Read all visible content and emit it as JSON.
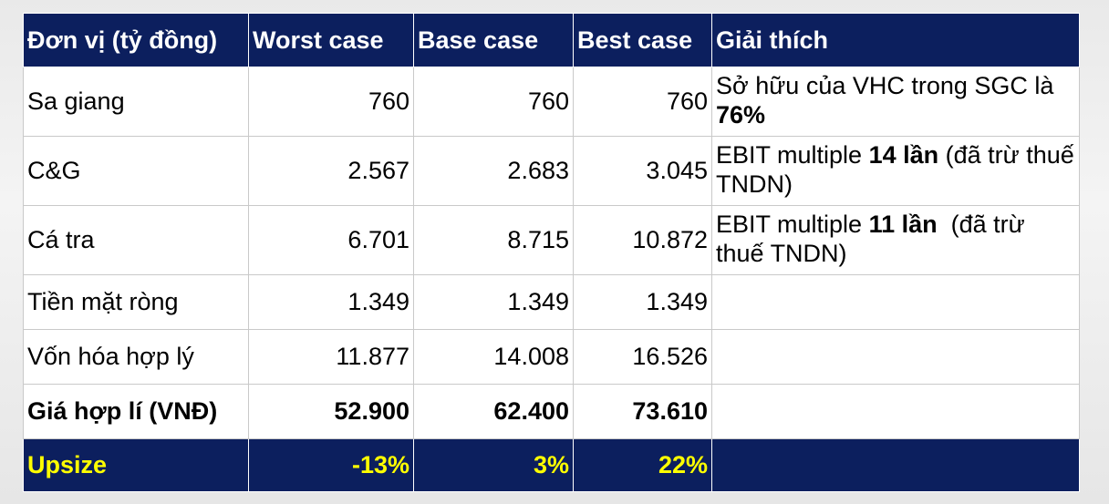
{
  "table": {
    "header": [
      "Đơn vị (tỷ đồng)",
      "Worst case",
      "Base case",
      "Best case",
      "Giải thích"
    ],
    "rows": [
      {
        "label": "Sa giang",
        "values": [
          "760",
          "760",
          "760"
        ],
        "note": [
          {
            "text": "Sở hữu của VHC trong SGC là "
          },
          {
            "text": "76%",
            "bold": true
          }
        ]
      },
      {
        "label": "C&G",
        "values": [
          "2.567",
          "2.683",
          "3.045"
        ],
        "note": [
          {
            "text": "EBIT multiple "
          },
          {
            "text": "14 lần",
            "bold": true
          },
          {
            "text": " (đã trừ thuế TNDN)"
          }
        ]
      },
      {
        "label": "Cá tra",
        "values": [
          "6.701",
          "8.715",
          "10.872"
        ],
        "note": [
          {
            "text": "EBIT multiple "
          },
          {
            "text": "11 lần",
            "bold": true
          },
          {
            "text": "  (đã trừ thuế TNDN)"
          }
        ]
      },
      {
        "label": "Tiền mặt ròng",
        "values": [
          "1.349",
          "1.349",
          "1.349"
        ]
      },
      {
        "label": "Vốn hóa hợp lý",
        "values": [
          "11.877",
          "14.008",
          "16.526"
        ]
      },
      {
        "label": "Giá hợp lí (VNĐ)",
        "values": [
          "52.900",
          "62.400",
          "73.610"
        ]
      },
      {
        "label": "Upsize",
        "values": [
          "-13%",
          "3%",
          "22%"
        ]
      }
    ]
  }
}
